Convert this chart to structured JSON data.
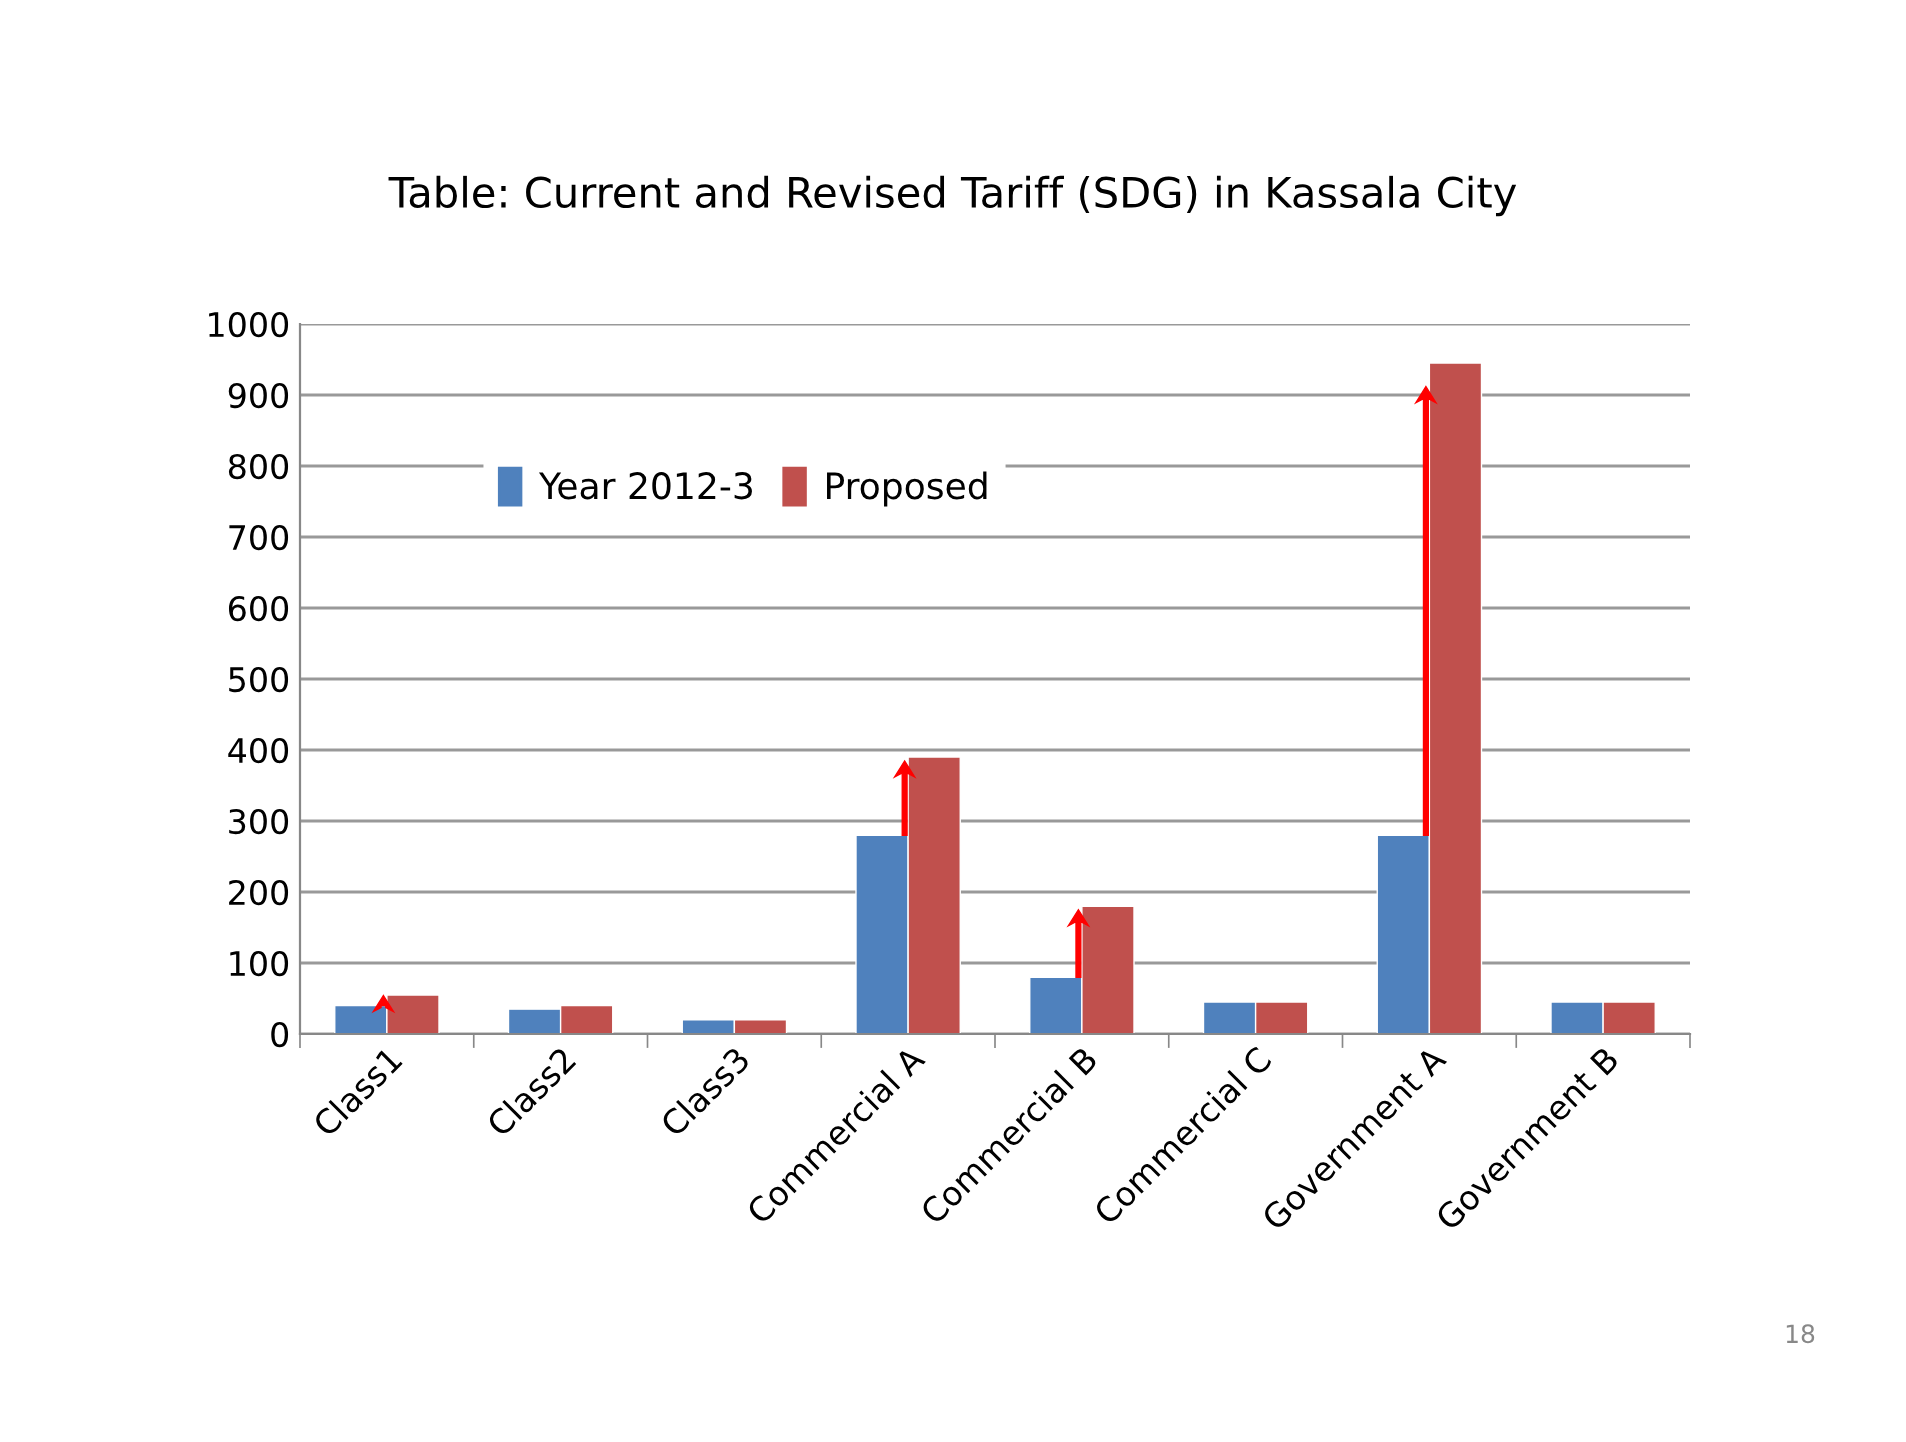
{
  "chart_data": {
    "type": "bar",
    "title": "Table: Current and Revised Tariff (SDG) in Kassala City",
    "categories": [
      "Class1",
      "Class2",
      "Class3",
      "Commercial A",
      "Commercial B",
      "Commercial C",
      "Government A",
      "Government B"
    ],
    "series": [
      {
        "name": "Year 2012-3",
        "color": "#4f81bd",
        "values": [
          40,
          35,
          20,
          280,
          80,
          45,
          280,
          45
        ]
      },
      {
        "name": "Proposed",
        "color": "#c0504d",
        "values": [
          55,
          40,
          20,
          390,
          180,
          45,
          945,
          45
        ]
      }
    ],
    "ylim": [
      0,
      1000
    ],
    "yticks": [
      0,
      100,
      200,
      300,
      400,
      500,
      600,
      700,
      800,
      900,
      1000
    ],
    "grid": "y",
    "legend": "top left",
    "annotations": [
      "18"
    ]
  }
}
